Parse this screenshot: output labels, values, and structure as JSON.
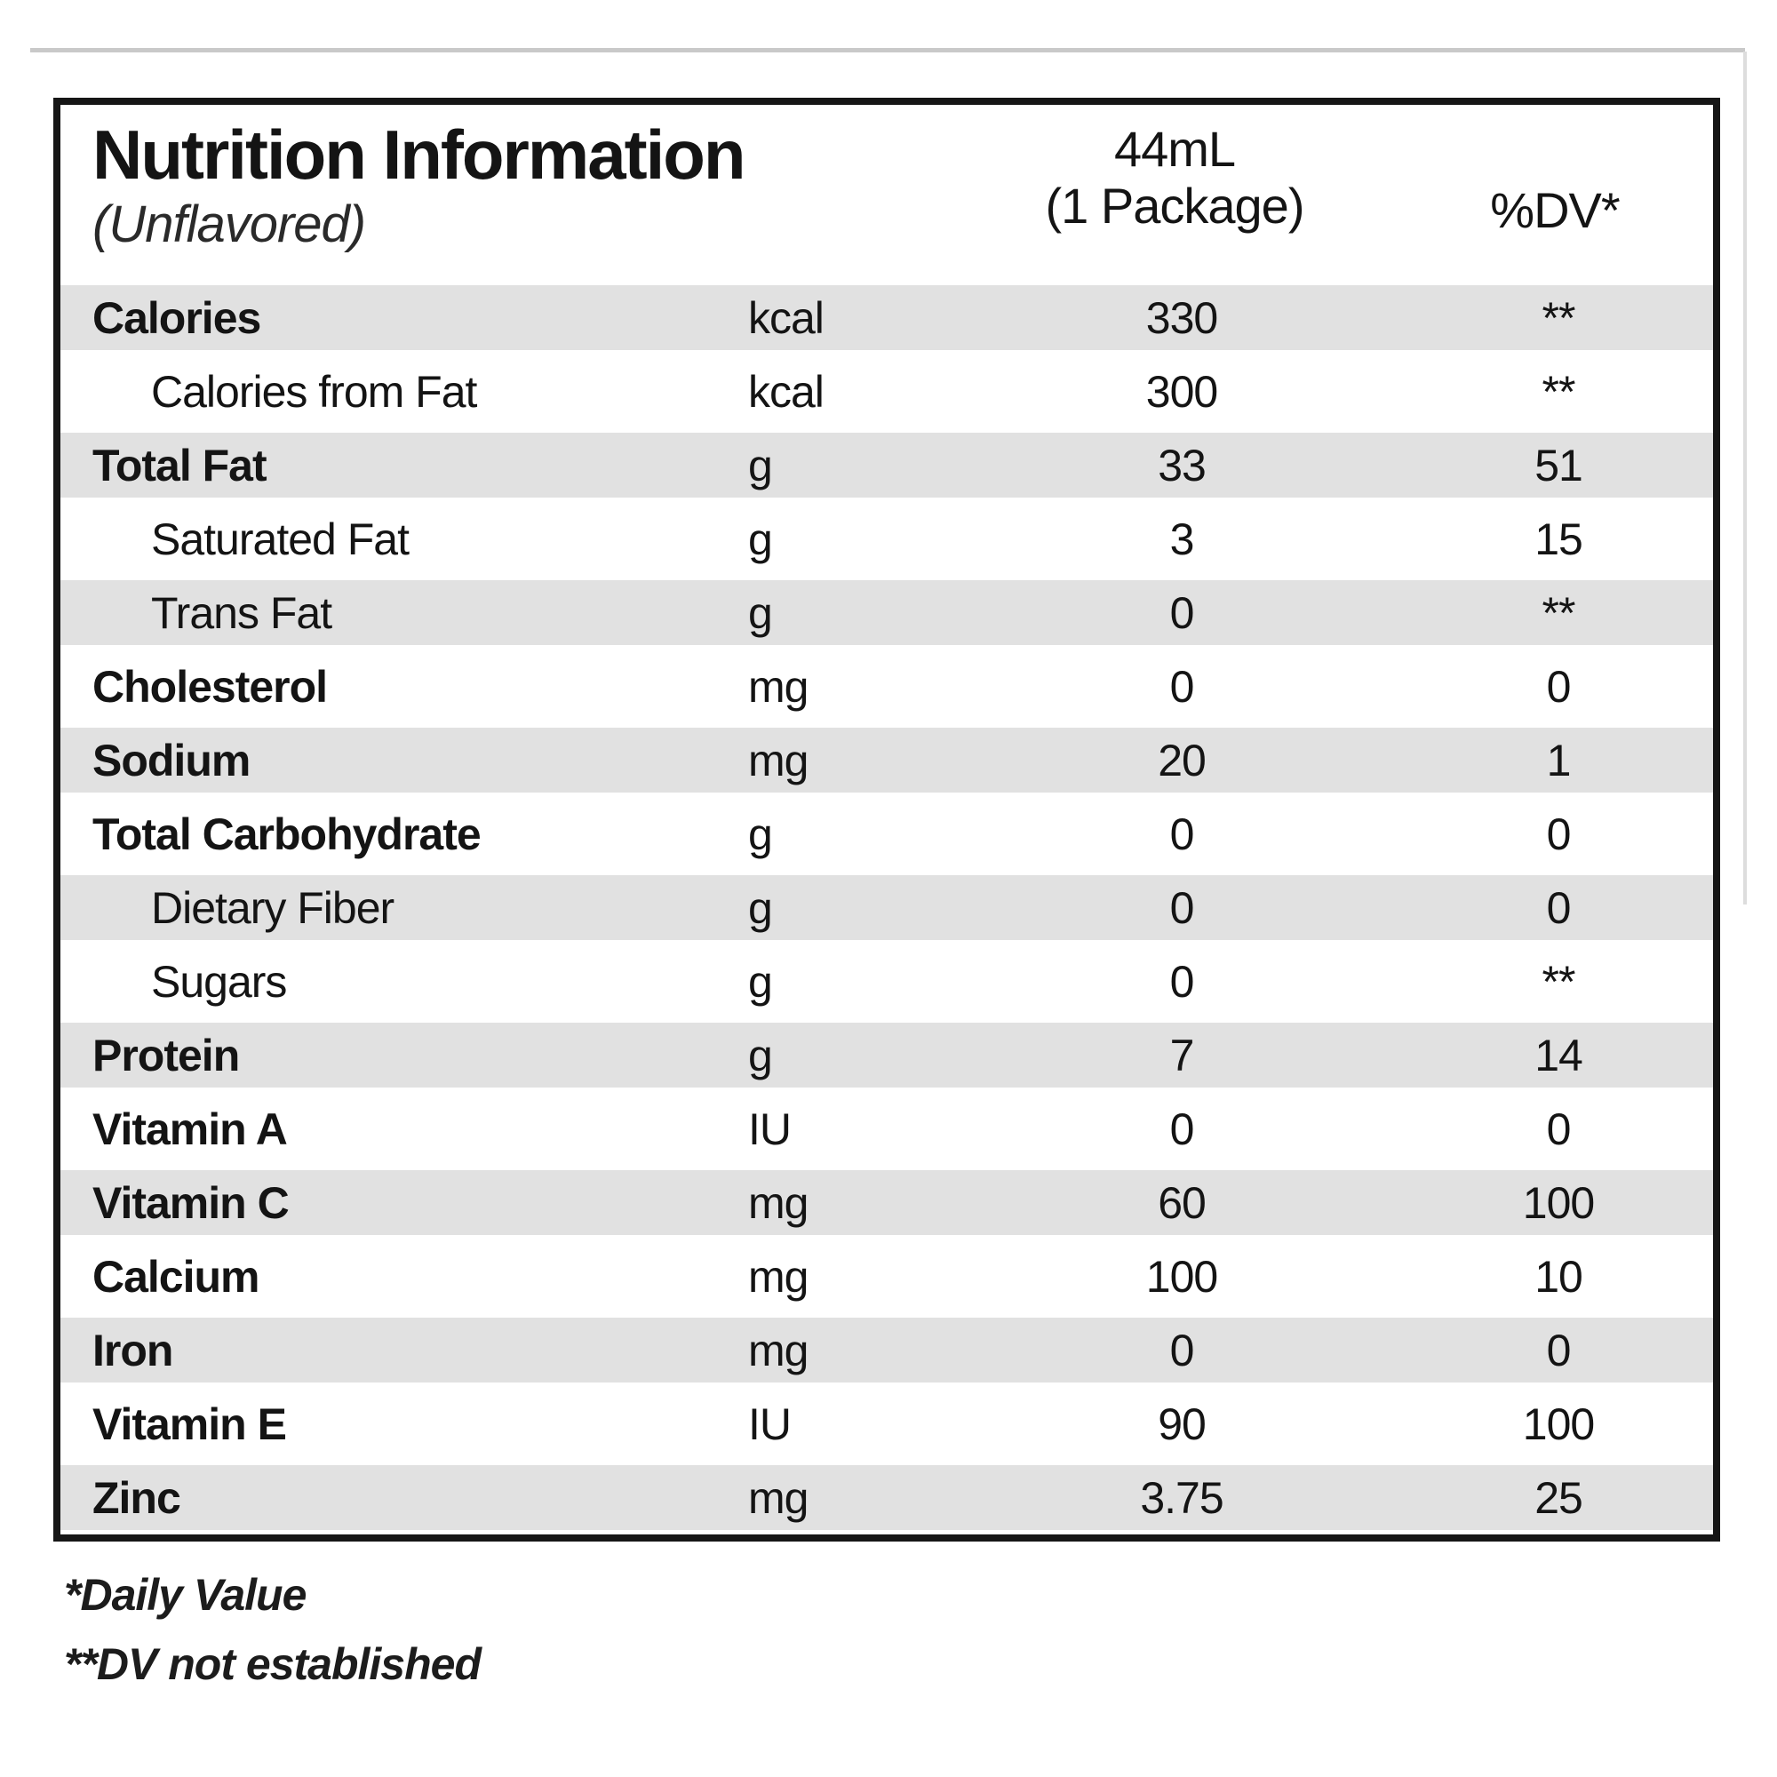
{
  "label": {
    "title": "Nutrition Information",
    "subtitle": "(Unflavored)",
    "serving_size": "44mL",
    "serving_qualifier": "(1 Package)",
    "dv_column_header": "%DV*"
  },
  "rows": [
    {
      "name": "Calories",
      "unit": "kcal",
      "amount": "330",
      "dv": "**",
      "indent": false,
      "shaded": true
    },
    {
      "name": "Calories from Fat",
      "unit": "kcal",
      "amount": "300",
      "dv": "**",
      "indent": true,
      "shaded": false
    },
    {
      "name": "Total Fat",
      "unit": "g",
      "amount": "33",
      "dv": "51",
      "indent": false,
      "shaded": true
    },
    {
      "name": "Saturated Fat",
      "unit": "g",
      "amount": "3",
      "dv": "15",
      "indent": true,
      "shaded": false
    },
    {
      "name": "Trans Fat",
      "unit": "g",
      "amount": "0",
      "dv": "**",
      "indent": true,
      "shaded": true
    },
    {
      "name": "Cholesterol",
      "unit": "mg",
      "amount": "0",
      "dv": "0",
      "indent": false,
      "shaded": false
    },
    {
      "name": "Sodium",
      "unit": "mg",
      "amount": "20",
      "dv": "1",
      "indent": false,
      "shaded": true
    },
    {
      "name": "Total Carbohydrate",
      "unit": "g",
      "amount": "0",
      "dv": "0",
      "indent": false,
      "shaded": false
    },
    {
      "name": "Dietary Fiber",
      "unit": "g",
      "amount": "0",
      "dv": "0",
      "indent": true,
      "shaded": true
    },
    {
      "name": "Sugars",
      "unit": "g",
      "amount": "0",
      "dv": "**",
      "indent": true,
      "shaded": false
    },
    {
      "name": "Protein",
      "unit": "g",
      "amount": "7",
      "dv": "14",
      "indent": false,
      "shaded": true
    },
    {
      "name": "Vitamin A",
      "unit": "IU",
      "amount": "0",
      "dv": "0",
      "indent": false,
      "shaded": false
    },
    {
      "name": "Vitamin C",
      "unit": "mg",
      "amount": "60",
      "dv": "100",
      "indent": false,
      "shaded": true
    },
    {
      "name": "Calcium",
      "unit": "mg",
      "amount": "100",
      "dv": "10",
      "indent": false,
      "shaded": false
    },
    {
      "name": "Iron",
      "unit": "mg",
      "amount": "0",
      "dv": "0",
      "indent": false,
      "shaded": true
    },
    {
      "name": "Vitamin E",
      "unit": "IU",
      "amount": "90",
      "dv": "100",
      "indent": false,
      "shaded": false
    },
    {
      "name": "Zinc",
      "unit": "mg",
      "amount": "3.75",
      "dv": "25",
      "indent": false,
      "shaded": true
    }
  ],
  "footnotes": {
    "daily_value": "*Daily Value",
    "dv_not_established": "**DV not established"
  },
  "colors": {
    "stripe": "#e1e1e1",
    "border": "#161616",
    "text": "#141414"
  }
}
